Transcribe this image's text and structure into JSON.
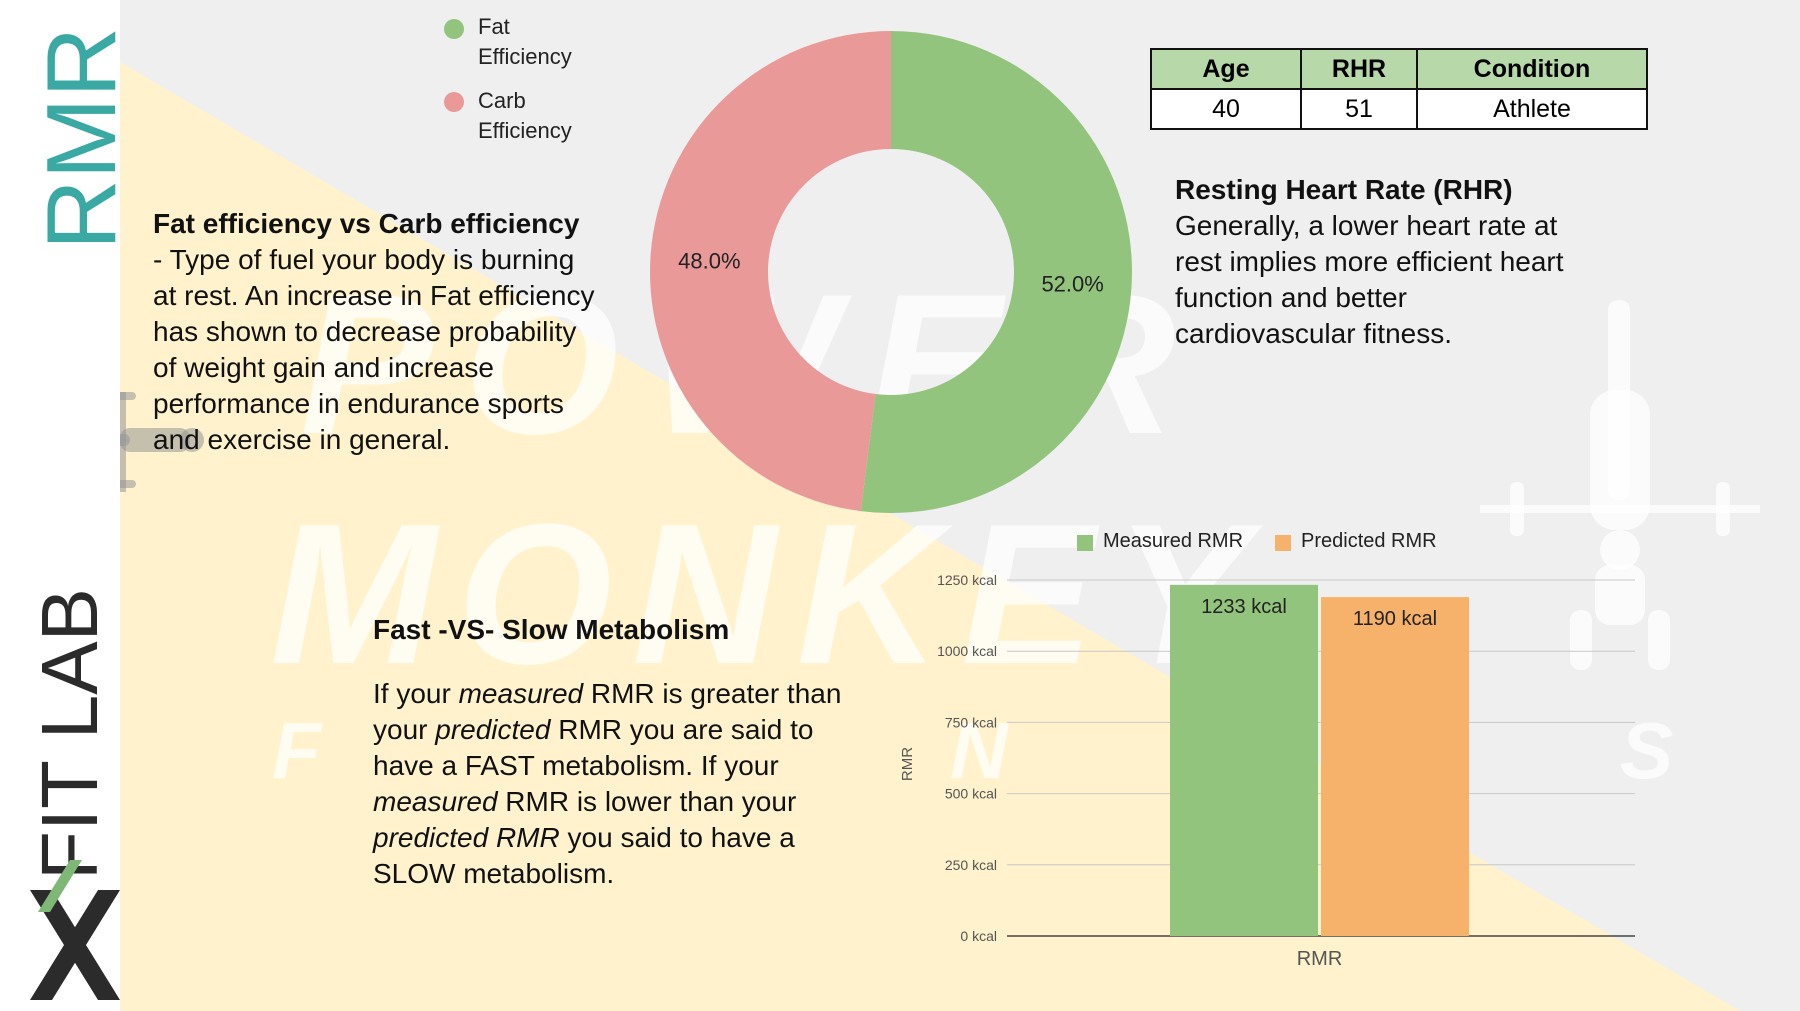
{
  "sidebar": {
    "title_top": "RMR",
    "title_bottom": "FIT LAB"
  },
  "watermark": {
    "line1": "POWER",
    "line2": "MONKEY",
    "letter_left": "F",
    "letter_mid": "N",
    "letter_right": "S"
  },
  "colors": {
    "fat": "#93c47d",
    "carb": "#ea9999",
    "measured": "#93c47d",
    "predicted": "#f6b26b",
    "teal": "#3aa9a3",
    "bg_yellow": "#fff2cc",
    "bg_gray": "#efefef"
  },
  "donut_legend": [
    {
      "line1": "Fat",
      "line2": "Efficiency"
    },
    {
      "line1": "Carb",
      "line2": "Efficiency"
    }
  ],
  "efficiency_section": {
    "heading": "Fat efficiency vs Carb efficiency",
    "lines": [
      "- Type of fuel your body is burning",
      "at rest. An increase in Fat efficiency",
      "has shown to decrease probability",
      "of weight gain and increase",
      "performance in endurance sports",
      "and exercise in general."
    ]
  },
  "info_table": {
    "headers": [
      "Age",
      "RHR",
      "Condition"
    ],
    "values": [
      "40",
      "51",
      "Athlete"
    ]
  },
  "rhr_section": {
    "heading": "Resting Heart Rate (RHR)",
    "lines": [
      "Generally, a lower heart rate at",
      "rest implies more efficient heart",
      "function and better",
      "cardiovascular fitness."
    ]
  },
  "metabolism_section": {
    "heading": "Fast -VS- Slow Metabolism",
    "l1a": "If your ",
    "l1b": "measured",
    "l1c": " RMR is greater than",
    "l2a": "your ",
    "l2b": "predicted",
    "l2c": " RMR you are said to",
    "l3": "have a FAST metabolism. If your",
    "l4a": "measured",
    "l4b": " RMR is lower than your",
    "l5a": "predicted RMR",
    "l5b": " you said to have a",
    "l6": "SLOW metabolism."
  },
  "bar_legend": [
    "Measured RMR",
    "Predicted RMR"
  ],
  "chart_data": [
    {
      "type": "pie",
      "donut": true,
      "labels": [
        "Fat Efficiency",
        "Carb Efficiency"
      ],
      "values": [
        52.0,
        48.0
      ],
      "value_labels": [
        "52.0%",
        "48.0%"
      ],
      "legend_position": "top-left"
    },
    {
      "type": "bar",
      "categories": [
        "RMR"
      ],
      "series": [
        {
          "name": "Measured RMR",
          "values": [
            1233
          ],
          "label": "1233 kcal"
        },
        {
          "name": "Predicted RMR",
          "values": [
            1190
          ],
          "label": "1190 kcal"
        }
      ],
      "xlabel": "RMR",
      "ylabel": "RMR",
      "ylim": [
        0,
        1250
      ],
      "yticks": [
        "0 kcal",
        "250 kcal",
        "500 kcal",
        "750 kcal",
        "1000 kcal",
        "1250 kcal"
      ],
      "ytick_values": [
        0,
        250,
        500,
        750,
        1000,
        1250
      ],
      "grid": true,
      "legend_position": "top"
    }
  ]
}
